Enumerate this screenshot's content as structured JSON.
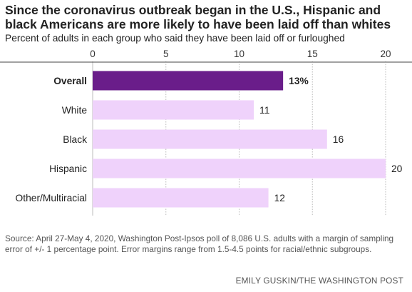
{
  "chart_data": {
    "type": "bar",
    "orientation": "horizontal",
    "title": "Since the coronavirus outbreak began in the U.S., Hispanic and black Americans are more likely to have been laid off than whites",
    "subtitle": "Percent of adults in each group who said they have been laid off or furloughed",
    "categories": [
      "Overall",
      "White",
      "Black",
      "Hispanic",
      "Other/Multiracial"
    ],
    "values": [
      13,
      11,
      16,
      20,
      12
    ],
    "value_labels": [
      "13%",
      "11",
      "16",
      "20",
      "12"
    ],
    "highlight_category": "Overall",
    "xlim": [
      0,
      20
    ],
    "xticks": [
      0,
      5,
      10,
      15,
      20
    ],
    "grid": true,
    "xaxis_position": "top",
    "colors": {
      "highlight": "#6a1d8a",
      "bar": "#efd2fb",
      "grid": "#bbbbbb",
      "axis": "#444444"
    }
  },
  "footer": {
    "source": "Source: April 27-May 4, 2020, Washington Post-Ipsos poll of 8,086 U.S. adults with a margin of sampling error of +/- 1 percentage point. Error margins range from 1.5-4.5 points for racial/ethnic subgroups.",
    "credit": "EMILY GUSKIN/THE WASHINGTON POST"
  }
}
